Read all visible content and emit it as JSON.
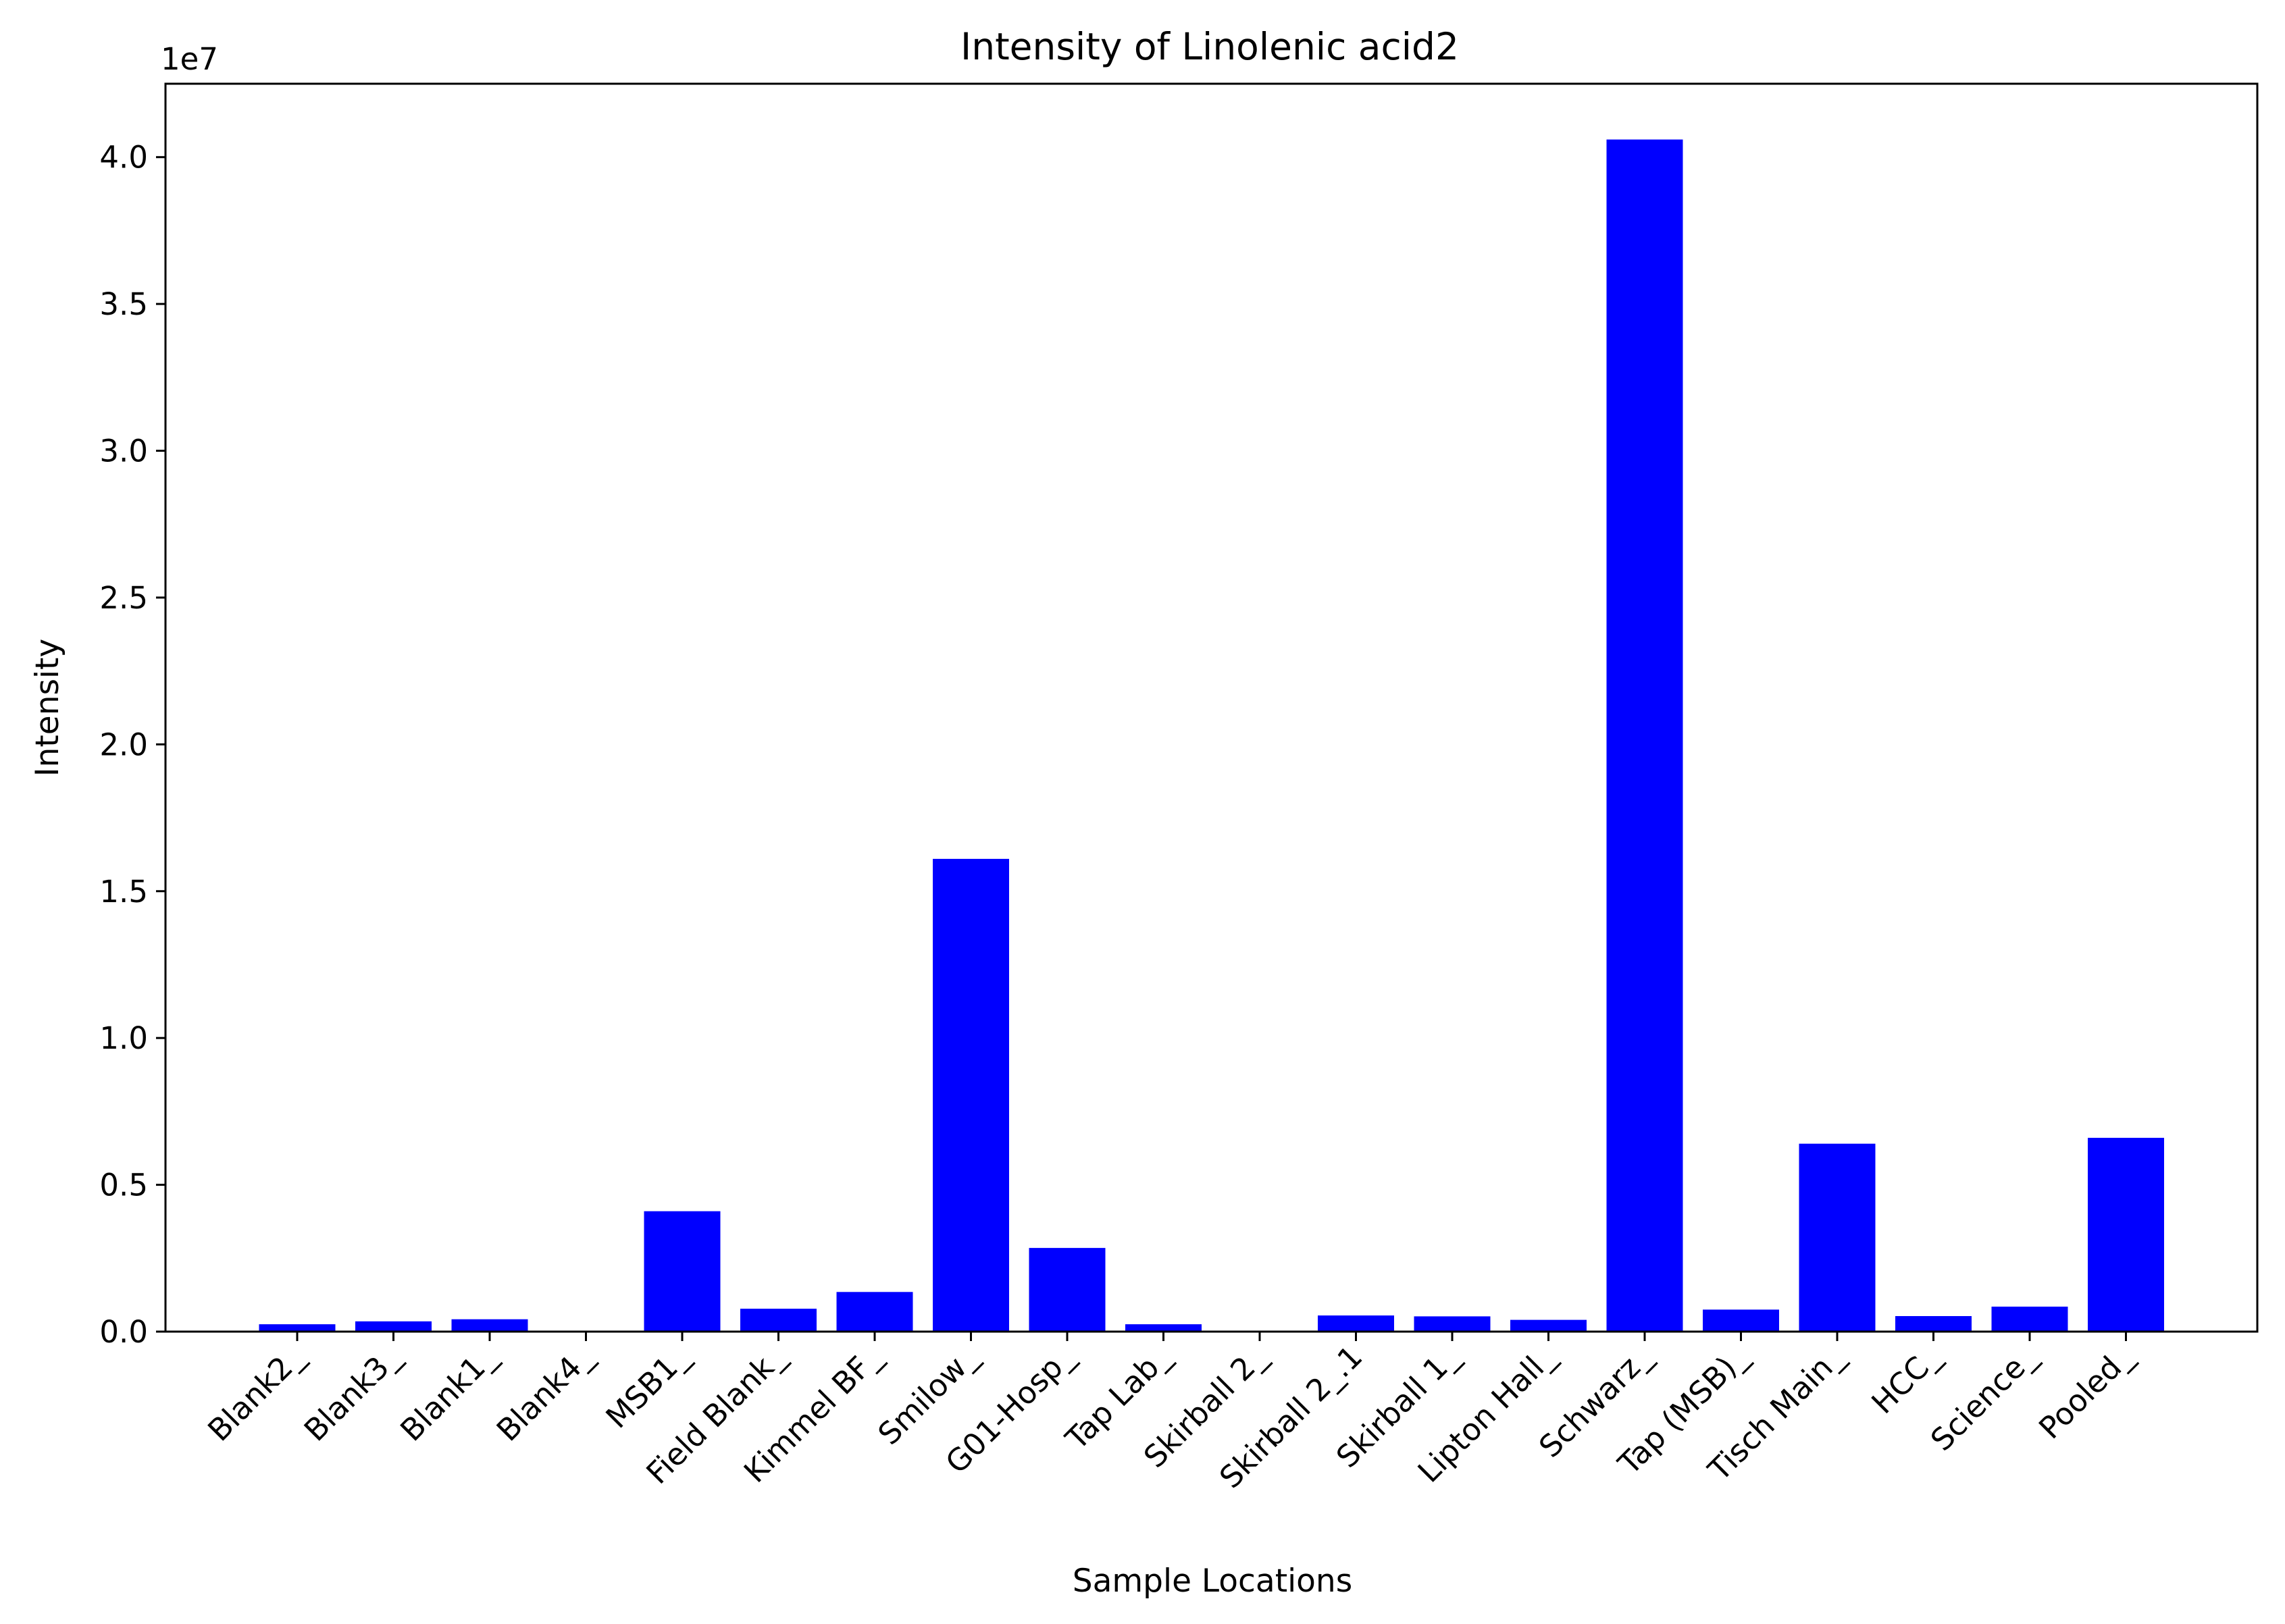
{
  "chart_data": {
    "type": "bar",
    "title": "Intensity of Linolenic acid2",
    "xlabel": "Sample Locations",
    "ylabel": "Intensity",
    "y_offset_label": "1e7",
    "ylim": [
      0,
      4.25
    ],
    "yticks": [
      0.0,
      0.5,
      1.0,
      1.5,
      2.0,
      2.5,
      3.0,
      3.5,
      4.0
    ],
    "ytick_labels": [
      "0.0",
      "0.5",
      "1.0",
      "1.5",
      "2.0",
      "2.5",
      "3.0",
      "3.5",
      "4.0"
    ],
    "grid": false,
    "categories": [
      "Blank2_",
      "Blank3_",
      "Blank1_",
      "Blank4_",
      "MSB1_",
      "Field Blank_",
      "Kimmel BF_",
      "Smilow_",
      "G01-Hosp_",
      "Tap Lab_",
      "Skirball 2_",
      "Skirball 2_.1",
      "Skirball 1_",
      "Lipton Hall_",
      "Schwarz_",
      "Tap (MSB)_",
      "Tisch Main_",
      "HCC_",
      "Science_",
      "Pooled_"
    ],
    "values": [
      0.025,
      0.035,
      0.042,
      0.0,
      0.41,
      0.078,
      0.135,
      1.61,
      0.285,
      0.025,
      0.0,
      0.055,
      0.052,
      0.04,
      4.06,
      0.075,
      0.64,
      0.053,
      0.085,
      0.66
    ],
    "value_unit_multiplier": 10000000,
    "colors": {
      "bar": "#0000ff",
      "axis": "#000000",
      "background": "#ffffff"
    }
  }
}
